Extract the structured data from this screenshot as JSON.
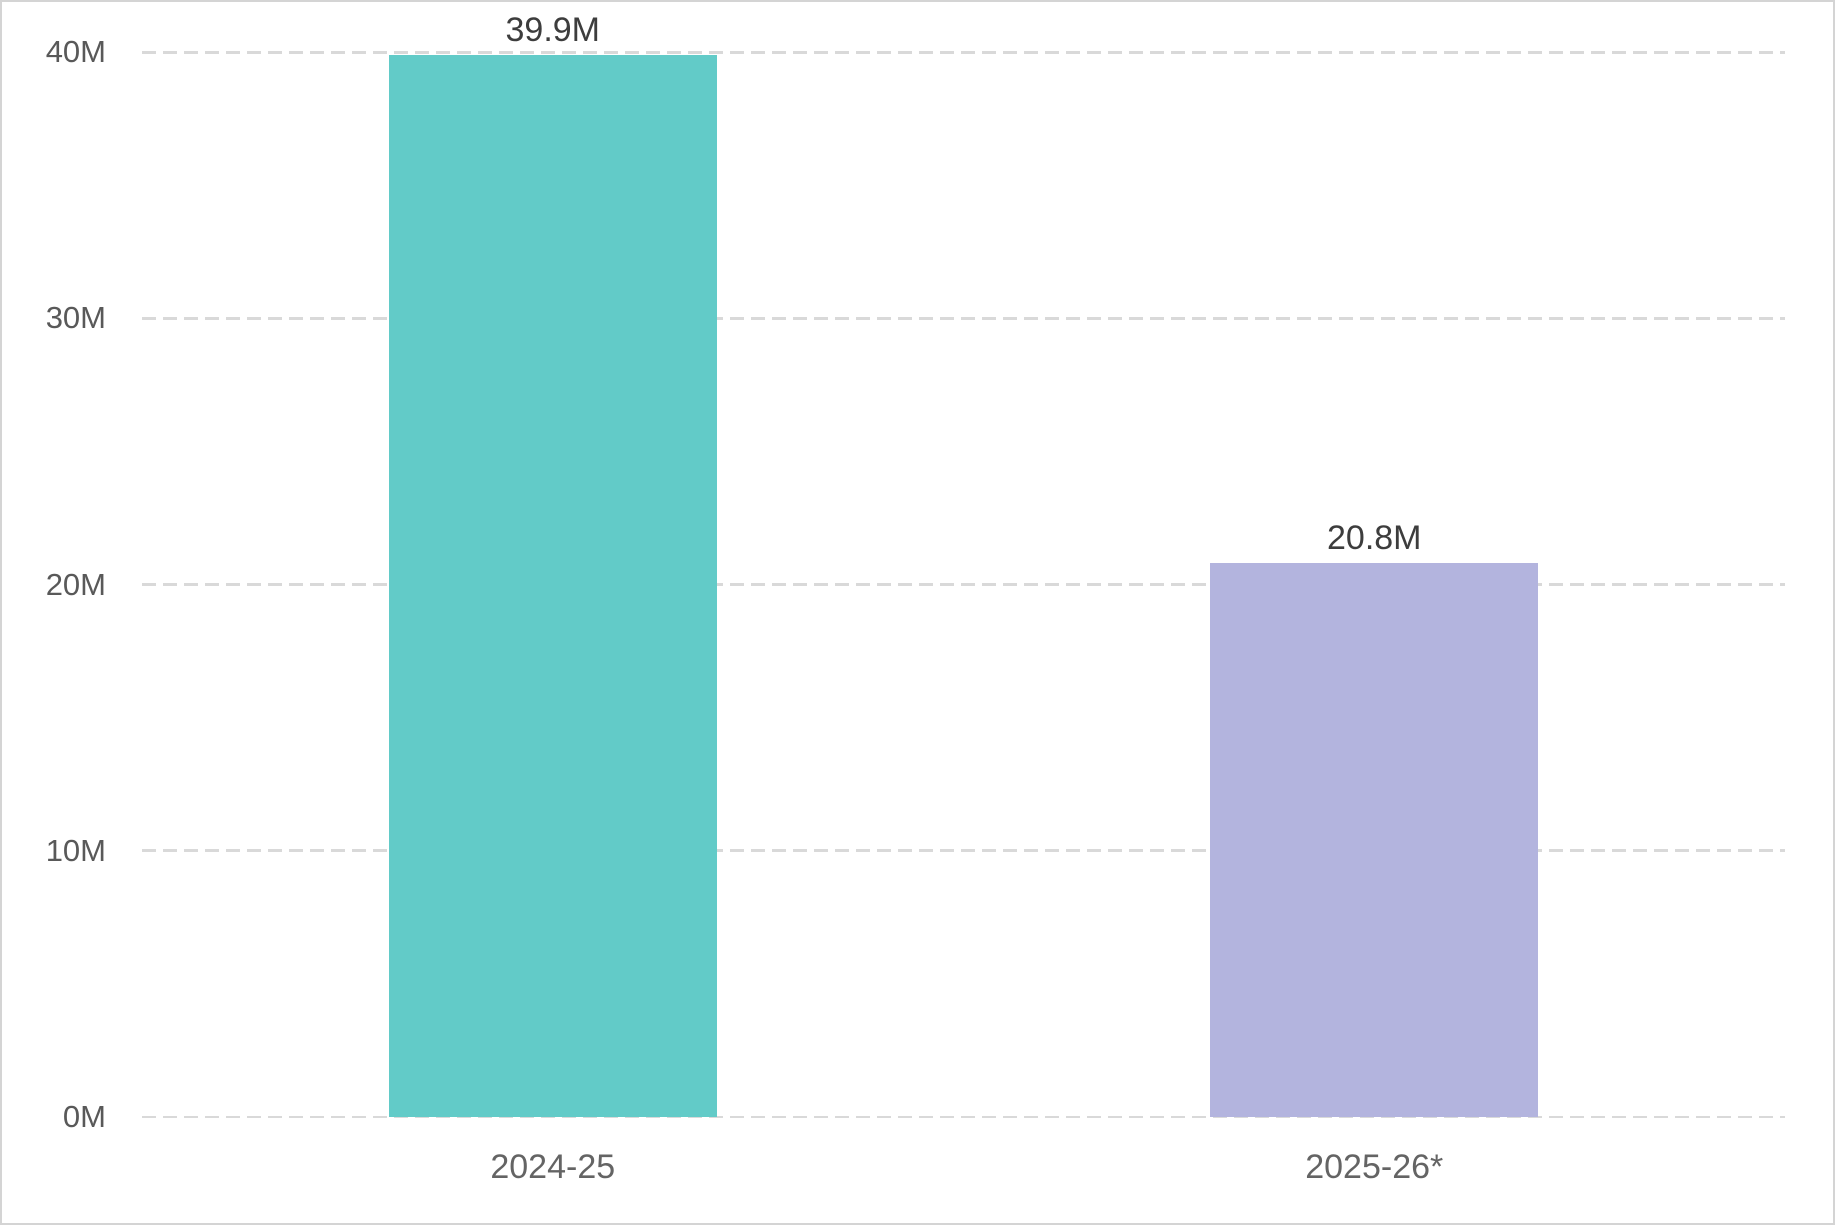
{
  "chart_data": {
    "type": "bar",
    "title": "",
    "xlabel": "",
    "ylabel": "",
    "categories": [
      "2024-25",
      "2025-26*"
    ],
    "values": [
      39.9,
      20.8
    ],
    "data_labels": [
      "39.9M",
      "20.8M"
    ],
    "bar_colors": [
      "#62cbc8",
      "#b3b4de"
    ],
    "ylim": [
      0,
      40
    ],
    "yticks": [
      {
        "value": 0,
        "label": "0M"
      },
      {
        "value": 10,
        "label": "10M"
      },
      {
        "value": 20,
        "label": "20M"
      },
      {
        "value": 30,
        "label": "30M"
      },
      {
        "value": 40,
        "label": "40M"
      }
    ],
    "grid": "horizontal-dashed",
    "legend": "none",
    "colors": {
      "gridline": "#d9d9d9",
      "axis_label_text": "#595959",
      "category_label_text": "#646464",
      "data_label_text": "#3d3d3d",
      "background": "#ffffff",
      "page_border": "#d4d4d4"
    }
  }
}
